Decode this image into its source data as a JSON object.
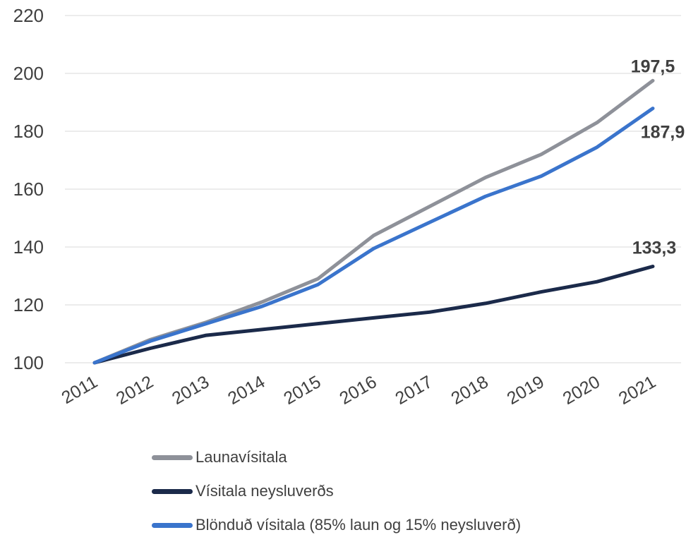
{
  "chart_data": {
    "type": "line",
    "title": "",
    "xlabel": "",
    "ylabel": "",
    "x": [
      "2011",
      "2012",
      "2013",
      "2014",
      "2015",
      "2016",
      "2017",
      "2018",
      "2019",
      "2020",
      "2021"
    ],
    "ylim": [
      100,
      220
    ],
    "yticks": [
      "100",
      "120",
      "140",
      "160",
      "180",
      "200",
      "220"
    ],
    "grid": true,
    "legend_position": "bottom",
    "series": [
      {
        "name": "Launavísitala",
        "color": "#8e9199",
        "values": [
          100,
          108,
          114,
          121,
          129,
          144,
          154,
          164,
          172,
          183,
          197.5
        ],
        "end_label": "197,5"
      },
      {
        "name": "Vísitala neysluverðs",
        "color": "#1b2a4a",
        "values": [
          100,
          105,
          109.5,
          111.5,
          113.5,
          115.5,
          117.5,
          120.5,
          124.5,
          128,
          133.3
        ],
        "end_label": "133,3"
      },
      {
        "name": "Blönduð vísitala (85% laun og 15% neysluverð)",
        "color": "#3a74cc",
        "values": [
          100,
          107.5,
          113.5,
          119.5,
          127,
          139.5,
          148.5,
          157.5,
          164.5,
          174.5,
          187.9
        ],
        "end_label": "187,9"
      }
    ]
  }
}
